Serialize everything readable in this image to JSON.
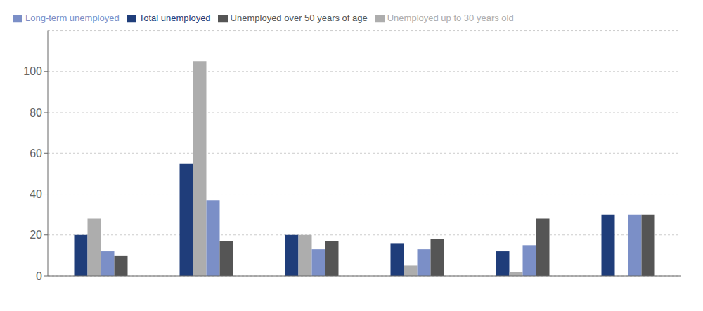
{
  "chart_data": {
    "type": "bar",
    "categories": [
      null,
      null,
      null,
      null,
      null,
      null
    ],
    "series": [
      {
        "name": "Total unemployed",
        "color": "#1F3D7A",
        "values": [
          20,
          55,
          20,
          16,
          12,
          30
        ]
      },
      {
        "name": "Unemployed up to 30 years old",
        "color": "#ADADAD",
        "values": [
          28,
          105,
          20,
          5,
          2,
          0
        ]
      },
      {
        "name": "Long-term unemployed",
        "color": "#7B8FC7",
        "values": [
          12,
          37,
          13,
          13,
          15,
          30
        ]
      },
      {
        "name": "Unemployed over 50 years of age",
        "color": "#555555",
        "values": [
          10,
          17,
          17,
          18,
          28,
          30
        ]
      }
    ],
    "ylim": [
      0,
      120
    ],
    "yticks": [
      0,
      20,
      40,
      60,
      80,
      100
    ],
    "grid": true,
    "legend": "top",
    "tick_labels": "y"
  }
}
